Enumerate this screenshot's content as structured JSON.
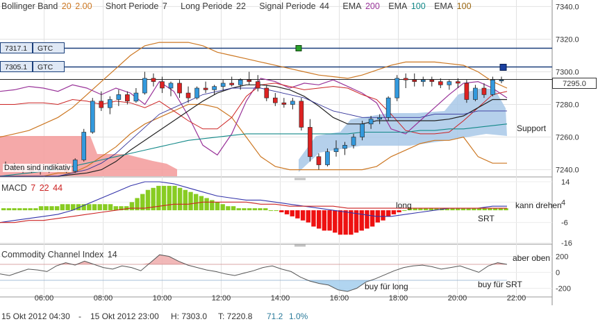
{
  "legend": {
    "bollinger_label": "Bollinger Band",
    "bollinger_period": "20",
    "bollinger_dev": "2.00",
    "short_label": "Short Periode",
    "short_value": "7",
    "long_label": "Long Periode",
    "long_value": "22",
    "signal_label": "Signal Periode",
    "signal_value": "44",
    "ema1_label": "EMA",
    "ema1_value": "200",
    "ema2_label": "EMA",
    "ema2_value": "100",
    "ema3_label": "EMA",
    "ema3_value": "100"
  },
  "price_tags": {
    "tag1_value": "7317.1",
    "tag1_button": "GTC",
    "tag2_value": "7305.1",
    "tag2_button": "GTC"
  },
  "current_price": "7295.0",
  "watermark": "Daten sind indikativ",
  "annotations": {
    "support": "Support",
    "long": "long",
    "kann_drehen": "kann drehen",
    "srt": "SRT",
    "aber_oben": "aber oben",
    "buy_long": "buy für long",
    "buy_srt": "buy für SRT"
  },
  "macd_panel": {
    "name": "MACD",
    "p1": "7",
    "p2": "22",
    "p3": "44"
  },
  "cci_panel": {
    "name": "Commodity Channel Index",
    "period": "14"
  },
  "footer": {
    "from": "15 Okt 2012 04:30",
    "separator": "-",
    "to": "15 Okt 2012 23:00",
    "high": "H: 7303.0",
    "low": "T: 7220.8",
    "change": "71.2",
    "change_pct": "1.0%"
  },
  "colors": {
    "background": "#ffffff",
    "up_candle": "#3399dd",
    "down_candle": "#dd2222",
    "bollinger": "#cc7722",
    "macd_positive": "#88cc22",
    "macd_negative": "#ee1111",
    "cci_positive_fill": "#f0b0b0",
    "cci_negative_fill": "#a8d0ee",
    "cloud_red": "#f4a0a0",
    "cloud_blue": "#a8c8e8",
    "tag_line": "#1a3f7a"
  },
  "chart_data": [
    {
      "type": "candlestick",
      "title": "",
      "x": [
        "05:00",
        "05:30",
        "06:00",
        "06:30",
        "07:00",
        "07:30",
        "08:00",
        "08:30",
        "09:00",
        "09:15",
        "09:30",
        "09:45",
        "10:00",
        "10:15",
        "10:30",
        "10:45",
        "11:00",
        "11:15",
        "11:30",
        "11:45",
        "12:00",
        "12:15",
        "12:30",
        "12:45",
        "13:00",
        "13:15",
        "13:30",
        "13:45",
        "14:00",
        "14:15",
        "14:30",
        "14:45",
        "15:00",
        "15:15",
        "15:30",
        "15:45",
        "16:00",
        "16:15",
        "16:30",
        "16:45",
        "17:00",
        "17:15",
        "17:30",
        "17:45",
        "18:00",
        "18:15",
        "18:30",
        "18:45",
        "19:00",
        "19:15",
        "19:30",
        "19:45",
        "20:00",
        "20:15",
        "20:30",
        "20:45",
        "21:00",
        "21:15"
      ],
      "x_ticks": [
        "06:00",
        "08:00",
        "10:00",
        "12:00",
        "14:00",
        "16:00",
        "18:00",
        "20:00",
        "22:00"
      ],
      "ylim": [
        7236,
        7344
      ],
      "y_ticks": [
        7240.0,
        7260.0,
        7280.0,
        7300.0,
        7320.0,
        7340.0
      ],
      "candles": [
        [
          7243,
          7245,
          7240,
          7242
        ],
        [
          7242,
          7244,
          7239,
          7241
        ],
        [
          7241,
          7243,
          7238,
          7240
        ],
        [
          7240,
          7242,
          7238,
          7239
        ],
        [
          7239,
          7241,
          7237,
          7240
        ],
        [
          7240,
          7243,
          7238,
          7242
        ],
        [
          7242,
          7244,
          7239,
          7241
        ],
        [
          7241,
          7243,
          7238,
          7239
        ],
        [
          7239,
          7247,
          7238,
          7246
        ],
        [
          7246,
          7265,
          7245,
          7263
        ],
        [
          7263,
          7284,
          7262,
          7282
        ],
        [
          7282,
          7288,
          7276,
          7278
        ],
        [
          7278,
          7285,
          7274,
          7283
        ],
        [
          7283,
          7289,
          7279,
          7286
        ],
        [
          7286,
          7288,
          7280,
          7282
        ],
        [
          7282,
          7290,
          7281,
          7287
        ],
        [
          7287,
          7300,
          7286,
          7296
        ],
        [
          7296,
          7299,
          7291,
          7294
        ],
        [
          7294,
          7297,
          7287,
          7290
        ],
        [
          7290,
          7294,
          7285,
          7293
        ],
        [
          7293,
          7295,
          7284,
          7287
        ],
        [
          7287,
          7291,
          7281,
          7284
        ],
        [
          7284,
          7291,
          7283,
          7290
        ],
        [
          7290,
          7294,
          7287,
          7289
        ],
        [
          7289,
          7292,
          7286,
          7291
        ],
        [
          7291,
          7295,
          7288,
          7293
        ],
        [
          7293,
          7297,
          7291,
          7292
        ],
        [
          7292,
          7296,
          7289,
          7295
        ],
        [
          7295,
          7300,
          7292,
          7294
        ],
        [
          7294,
          7298,
          7288,
          7290
        ],
        [
          7290,
          7292,
          7282,
          7284
        ],
        [
          7284,
          7287,
          7279,
          7281
        ],
        [
          7281,
          7284,
          7278,
          7280
        ],
        [
          7280,
          7284,
          7277,
          7282
        ],
        [
          7282,
          7284,
          7264,
          7266
        ],
        [
          7266,
          7271,
          7245,
          7248
        ],
        [
          7248,
          7250,
          7240,
          7243
        ],
        [
          7243,
          7253,
          7242,
          7251
        ],
        [
          7251,
          7258,
          7248,
          7253
        ],
        [
          7253,
          7257,
          7249,
          7255
        ],
        [
          7255,
          7262,
          7253,
          7260
        ],
        [
          7260,
          7270,
          7258,
          7268
        ],
        [
          7268,
          7273,
          7265,
          7271
        ],
        [
          7271,
          7274,
          7268,
          7272
        ],
        [
          7272,
          7285,
          7270,
          7284
        ],
        [
          7284,
          7298,
          7282,
          7296
        ],
        [
          7296,
          7299,
          7290,
          7295
        ],
        [
          7295,
          7299,
          7291,
          7294
        ],
        [
          7294,
          7297,
          7291,
          7295
        ],
        [
          7295,
          7297,
          7291,
          7294
        ],
        [
          7294,
          7296,
          7290,
          7292
        ],
        [
          7292,
          7295,
          7289,
          7294
        ],
        [
          7294,
          7296,
          7290,
          7293
        ],
        [
          7293,
          7295,
          7281,
          7283
        ],
        [
          7283,
          7292,
          7282,
          7290
        ],
        [
          7290,
          7293,
          7284,
          7286
        ],
        [
          7286,
          7297,
          7285,
          7295
        ],
        [
          7295,
          7297,
          7293,
          7295
        ]
      ],
      "lines": {
        "bollinger_upper": [
          7260,
          7262,
          7264,
          7268,
          7272,
          7278,
          7286,
          7294,
          7302,
          7310,
          7316,
          7318,
          7318,
          7318,
          7316,
          7312,
          7310,
          7308,
          7306,
          7304,
          7302,
          7300,
          7298,
          7297,
          7296,
          7298,
          7301,
          7304,
          7306,
          7306,
          7306,
          7305,
          7304,
          7300,
          7294,
          7290
        ],
        "bollinger_lower": [
          7236,
          7236,
          7236,
          7236,
          7238,
          7238,
          7242,
          7248,
          7254,
          7262,
          7268,
          7272,
          7276,
          7280,
          7280,
          7278,
          7272,
          7260,
          7248,
          7242,
          7240,
          7240,
          7240,
          7240,
          7240,
          7240,
          7242,
          7248,
          7252,
          7256,
          7258,
          7258,
          7260,
          7248,
          7244,
          7244
        ]
      }
    },
    {
      "type": "bar",
      "title": "MACD",
      "x_range": [
        "05:00",
        "21:30"
      ],
      "ylim": [
        -16,
        14
      ],
      "y_ticks": [
        -16,
        -6,
        4,
        14
      ],
      "values": [
        1,
        1,
        1,
        1,
        1,
        1,
        1,
        2,
        2,
        2,
        2,
        3,
        3,
        3,
        3,
        3,
        3,
        3,
        3,
        3,
        3,
        2,
        2,
        2,
        4,
        6,
        8,
        10,
        11,
        12,
        12,
        12,
        12,
        11,
        10,
        9,
        8,
        7,
        6,
        5,
        4,
        3,
        2,
        2,
        1,
        1,
        1,
        1,
        1,
        1,
        0,
        0,
        -1,
        -2,
        -3,
        -4,
        -5,
        -6,
        -8,
        -9,
        -10,
        -10,
        -11,
        -12,
        -12,
        -12,
        -11,
        -10,
        -9,
        -8,
        -6,
        -5,
        -3,
        -2,
        -1,
        0,
        1,
        1,
        1,
        1,
        1,
        1,
        1,
        1,
        1,
        1,
        1,
        1,
        1,
        1,
        1,
        1,
        1,
        1,
        1
      ]
    },
    {
      "type": "area",
      "title": "Commodity Channel Index",
      "x_range": [
        "05:00",
        "21:30"
      ],
      "ylim": [
        -300,
        300
      ],
      "y_ticks": [
        -200,
        0,
        200
      ],
      "values": [
        -20,
        -40,
        0,
        40,
        30,
        10,
        80,
        120,
        90,
        140,
        100,
        60,
        40,
        80,
        60,
        20,
        120,
        220,
        200,
        140,
        90,
        60,
        30,
        10,
        -20,
        -40,
        -10,
        20,
        60,
        80,
        40,
        10,
        -60,
        -110,
        -140,
        -160,
        -220,
        -240,
        -200,
        -120,
        -80,
        -30,
        20,
        60,
        80,
        90,
        70,
        40,
        60,
        80,
        40,
        0,
        80,
        120,
        100
      ]
    }
  ]
}
